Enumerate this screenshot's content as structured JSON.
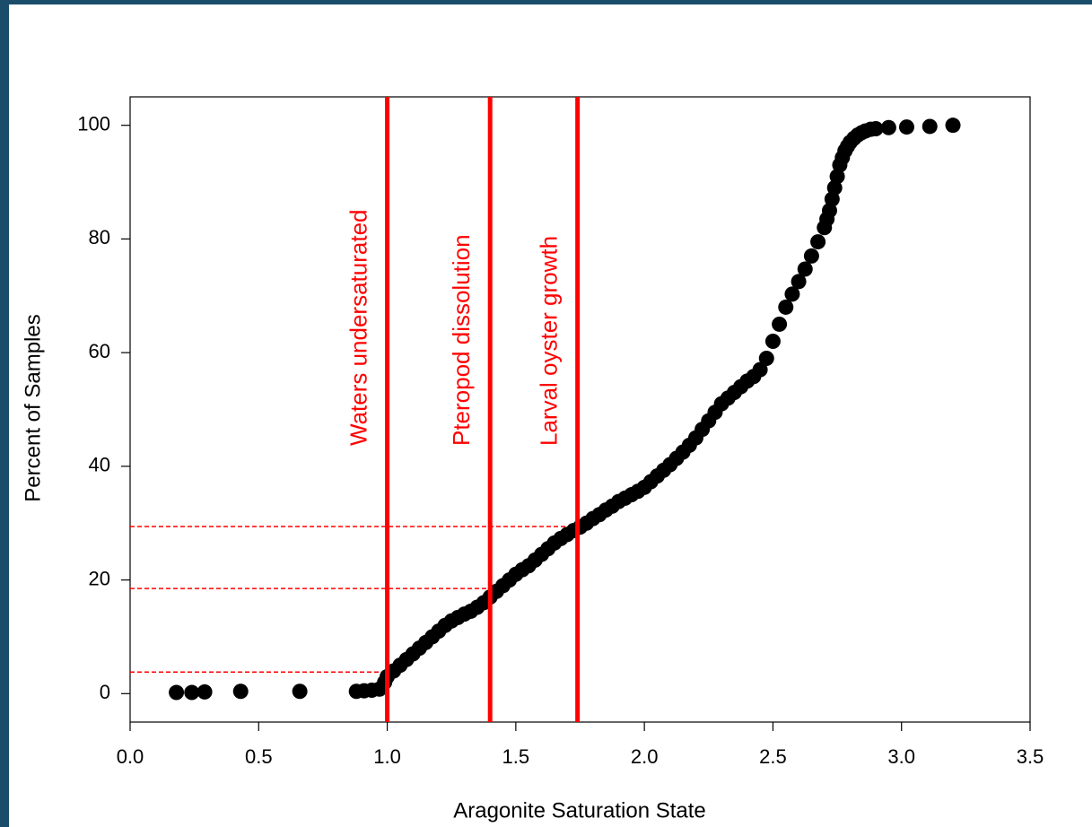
{
  "chart_data": {
    "type": "scatter",
    "x_label": "Aragonite Saturation State",
    "y_label": "Percent of Samples",
    "xlim": [
      0,
      3.5
    ],
    "ylim": [
      -5,
      105
    ],
    "xticks": [
      {
        "value": 0,
        "label": "0.0"
      },
      {
        "value": 0.5,
        "label": "0.5"
      },
      {
        "value": 1,
        "label": "1.0"
      },
      {
        "value": 1.5,
        "label": "1.5"
      },
      {
        "value": 2,
        "label": "2.0"
      },
      {
        "value": 2.5,
        "label": "2.5"
      },
      {
        "value": 3,
        "label": "3.0"
      },
      {
        "value": 3.5,
        "label": "3.5"
      }
    ],
    "yticks": [
      0,
      20,
      40,
      60,
      80,
      100
    ],
    "color": "#000000",
    "threshold_color": "#ff0000",
    "thresholds": [
      {
        "x": 1.0,
        "y": 3.8,
        "label": "Waters undersaturated"
      },
      {
        "x": 1.4,
        "y": 18.5,
        "label": "Pteropod dissolution"
      },
      {
        "x": 1.74,
        "y": 29.4,
        "label": "Larval oyster growth"
      }
    ],
    "x": [
      0.18,
      0.24,
      0.29,
      0.43,
      0.66,
      0.88,
      0.91,
      0.94,
      0.97,
      0.99,
      1.0,
      1.025,
      1.05,
      1.075,
      1.1,
      1.125,
      1.15,
      1.175,
      1.2,
      1.225,
      1.25,
      1.275,
      1.3,
      1.325,
      1.35,
      1.375,
      1.4,
      1.425,
      1.45,
      1.475,
      1.5,
      1.525,
      1.55,
      1.575,
      1.6,
      1.625,
      1.65,
      1.675,
      1.7,
      1.725,
      1.75,
      1.775,
      1.8,
      1.825,
      1.85,
      1.875,
      1.9,
      1.925,
      1.95,
      1.975,
      2.0,
      2.025,
      2.05,
      2.075,
      2.1,
      2.125,
      2.15,
      2.175,
      2.2,
      2.225,
      2.25,
      2.275,
      2.3,
      2.325,
      2.35,
      2.375,
      2.4,
      2.425,
      2.45,
      2.475,
      2.5,
      2.525,
      2.55,
      2.575,
      2.6,
      2.625,
      2.65,
      2.675,
      2.7,
      2.71,
      2.72,
      2.73,
      2.74,
      2.75,
      2.76,
      2.77,
      2.78,
      2.79,
      2.8,
      2.815,
      2.83,
      2.845,
      2.86,
      2.88,
      2.9,
      2.95,
      3.02,
      3.11,
      3.2
    ],
    "values": [
      0.2,
      0.2,
      0.3,
      0.4,
      0.4,
      0.4,
      0.5,
      0.6,
      0.8,
      2,
      3,
      4,
      5,
      6,
      7,
      8,
      9,
      10,
      11,
      12,
      12.8,
      13.4,
      14,
      14.5,
      15.2,
      16,
      17,
      18,
      19,
      20,
      21,
      21.8,
      22.5,
      23.5,
      24.5,
      25.5,
      26.5,
      27.3,
      28,
      28.7,
      29.3,
      30,
      30.8,
      31.5,
      32.3,
      33,
      33.8,
      34.4,
      35,
      35.6,
      36.3,
      37.3,
      38.3,
      39.3,
      40.3,
      41.4,
      42.5,
      43.7,
      45,
      46.5,
      48,
      49.5,
      51,
      52,
      53,
      54,
      55,
      55.8,
      57,
      59,
      62,
      65,
      68,
      70.3,
      72.5,
      74.7,
      77,
      79.5,
      82,
      83.5,
      85,
      87,
      89,
      91,
      93,
      94.3,
      95.5,
      96.3,
      97,
      97.7,
      98.3,
      98.7,
      99,
      99.3,
      99.4,
      99.6,
      99.7,
      99.8,
      100
    ]
  }
}
